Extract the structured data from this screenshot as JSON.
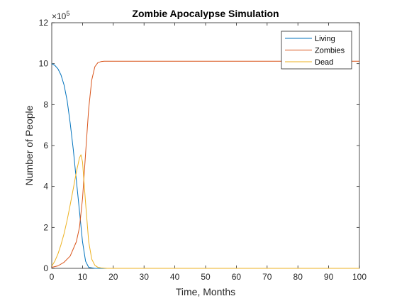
{
  "chart_data": {
    "type": "line",
    "title": "Zombie Apocalypse Simulation",
    "xlabel": "Time, Months",
    "ylabel": "Number of People",
    "exponent_label": "×10",
    "exponent_power": "5",
    "xlim": [
      0,
      100
    ],
    "ylim": [
      0,
      12
    ],
    "xticks": [
      "0",
      "10",
      "20",
      "30",
      "40",
      "50",
      "60",
      "70",
      "80",
      "90",
      "100"
    ],
    "yticks": [
      "0",
      "2",
      "4",
      "6",
      "8",
      "10",
      "12"
    ],
    "legend_position": "top-right",
    "grid": false,
    "series": [
      {
        "name": "Living",
        "color": "#0072BD",
        "x": [
          0,
          1,
          2,
          3,
          4,
          5,
          6,
          7,
          8,
          9,
          10,
          11,
          12,
          14,
          16,
          20,
          40,
          60,
          80,
          100
        ],
        "y": [
          10.0,
          9.92,
          9.75,
          9.45,
          8.95,
          8.2,
          7.1,
          5.8,
          4.3,
          2.8,
          1.3,
          0.35,
          0.05,
          0,
          0,
          0,
          0,
          0,
          0,
          0
        ]
      },
      {
        "name": "Zombies",
        "color": "#D95319",
        "x": [
          0,
          2,
          4,
          6,
          8,
          9,
          10,
          11,
          12,
          13,
          14,
          15,
          16,
          17,
          18,
          20,
          30,
          40,
          60,
          80,
          100
        ],
        "y": [
          0.05,
          0.12,
          0.3,
          0.6,
          1.3,
          2.0,
          3.4,
          5.6,
          7.8,
          9.2,
          9.85,
          10.05,
          10.1,
          10.12,
          10.12,
          10.12,
          10.12,
          10.12,
          10.12,
          10.12,
          10.12
        ]
      },
      {
        "name": "Dead",
        "color": "#EDB120",
        "x": [
          0,
          1,
          2,
          3,
          4,
          5,
          6,
          7,
          8,
          9,
          9.5,
          10,
          11,
          12,
          13,
          14,
          15,
          16,
          18,
          20,
          40,
          60,
          80,
          100
        ],
        "y": [
          0.1,
          0.35,
          0.7,
          1.15,
          1.7,
          2.35,
          3.1,
          3.9,
          4.7,
          5.4,
          5.55,
          5.2,
          3.2,
          1.3,
          0.45,
          0.15,
          0.05,
          0.02,
          0,
          0,
          0,
          0,
          0,
          0
        ]
      }
    ]
  }
}
